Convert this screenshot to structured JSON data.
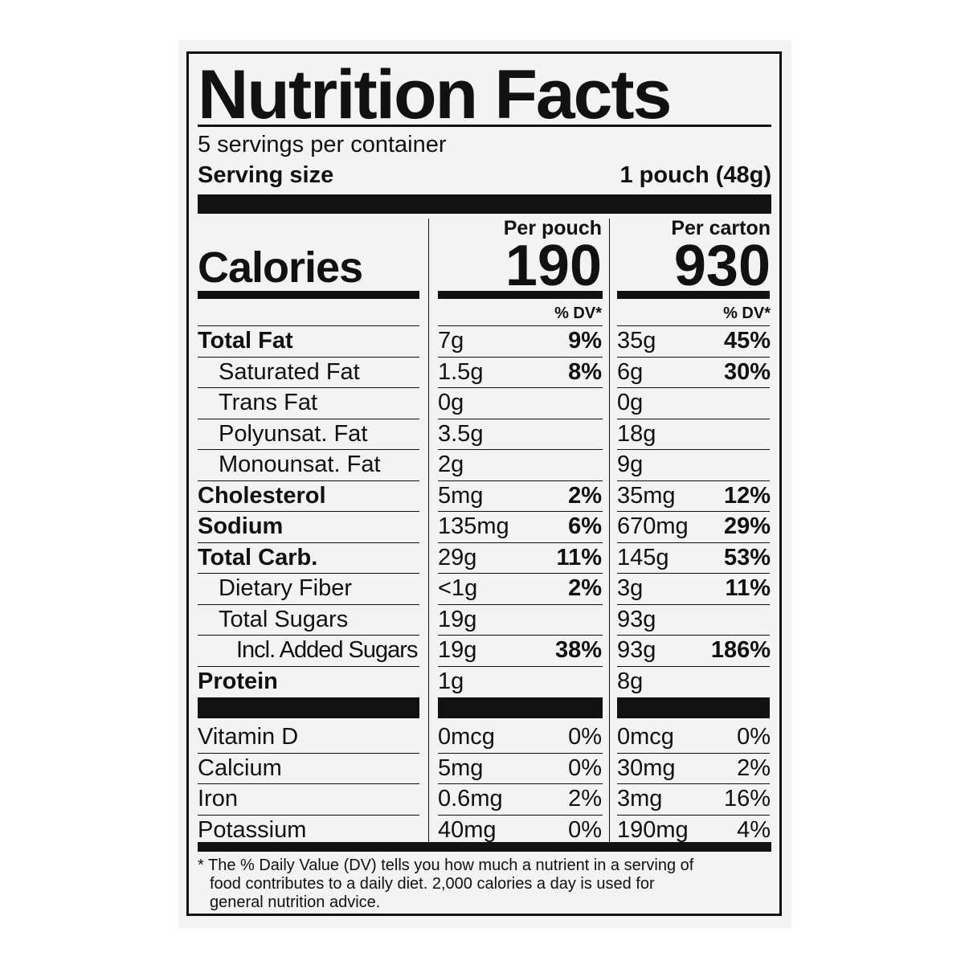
{
  "title": "Nutrition Facts",
  "servings_per_container": "5 servings per container",
  "serving_size_label": "Serving size",
  "serving_size_value": "1 pouch (48g)",
  "calories_label": "Calories",
  "columns": [
    {
      "header": "Per pouch",
      "calories": "190",
      "dv_header": "% DV*"
    },
    {
      "header": "Per carton",
      "calories": "930",
      "dv_header": "% DV*"
    }
  ],
  "nutrients": [
    {
      "name": "Total Fat",
      "bold": true,
      "indent": 0,
      "pouch": "7g",
      "pouch_dv": "9%",
      "carton": "35g",
      "carton_dv": "45%"
    },
    {
      "name": "Saturated Fat",
      "bold": false,
      "indent": 1,
      "pouch": "1.5g",
      "pouch_dv": "8%",
      "carton": "6g",
      "carton_dv": "30%"
    },
    {
      "name": "Trans Fat",
      "bold": false,
      "indent": 1,
      "pouch": "0g",
      "pouch_dv": "",
      "carton": "0g",
      "carton_dv": ""
    },
    {
      "name": "Polyunsat. Fat",
      "bold": false,
      "indent": 1,
      "pouch": "3.5g",
      "pouch_dv": "",
      "carton": "18g",
      "carton_dv": ""
    },
    {
      "name": "Monounsat. Fat",
      "bold": false,
      "indent": 1,
      "pouch": "2g",
      "pouch_dv": "",
      "carton": "9g",
      "carton_dv": ""
    },
    {
      "name": "Cholesterol",
      "bold": true,
      "indent": 0,
      "pouch": "5mg",
      "pouch_dv": "2%",
      "carton": "35mg",
      "carton_dv": "12%"
    },
    {
      "name": "Sodium",
      "bold": true,
      "indent": 0,
      "pouch": "135mg",
      "pouch_dv": "6%",
      "carton": "670mg",
      "carton_dv": "29%"
    },
    {
      "name": "Total Carb.",
      "bold": true,
      "indent": 0,
      "pouch": "29g",
      "pouch_dv": "11%",
      "carton": "145g",
      "carton_dv": "53%"
    },
    {
      "name": "Dietary Fiber",
      "bold": false,
      "indent": 1,
      "pouch": "<1g",
      "pouch_dv": "2%",
      "carton": "3g",
      "carton_dv": "11%"
    },
    {
      "name": "Total Sugars",
      "bold": false,
      "indent": 1,
      "pouch": "19g",
      "pouch_dv": "",
      "carton": "93g",
      "carton_dv": ""
    },
    {
      "name": "Incl. Added Sugars",
      "bold": false,
      "indent": 2,
      "pouch": "19g",
      "pouch_dv": "38%",
      "carton": "93g",
      "carton_dv": "186%"
    },
    {
      "name": "Protein",
      "bold": true,
      "indent": 0,
      "pouch": "1g",
      "pouch_dv": "",
      "carton": "8g",
      "carton_dv": ""
    }
  ],
  "vitamins": [
    {
      "name": "Vitamin D",
      "pouch": "0mcg",
      "pouch_dv": "0%",
      "carton": "0mcg",
      "carton_dv": "0%"
    },
    {
      "name": "Calcium",
      "pouch": "5mg",
      "pouch_dv": "0%",
      "carton": "30mg",
      "carton_dv": "2%"
    },
    {
      "name": "Iron",
      "pouch": "0.6mg",
      "pouch_dv": "2%",
      "carton": "3mg",
      "carton_dv": "16%"
    },
    {
      "name": "Potassium",
      "pouch": "40mg",
      "pouch_dv": "0%",
      "carton": "190mg",
      "carton_dv": "4%"
    }
  ],
  "footnote_line1": "* The % Daily Value (DV) tells you how much a nutrient in a serving of",
  "footnote_line2": "food contributes to a daily diet. 2,000 calories a day is used for",
  "footnote_line3": "general nutrition advice."
}
